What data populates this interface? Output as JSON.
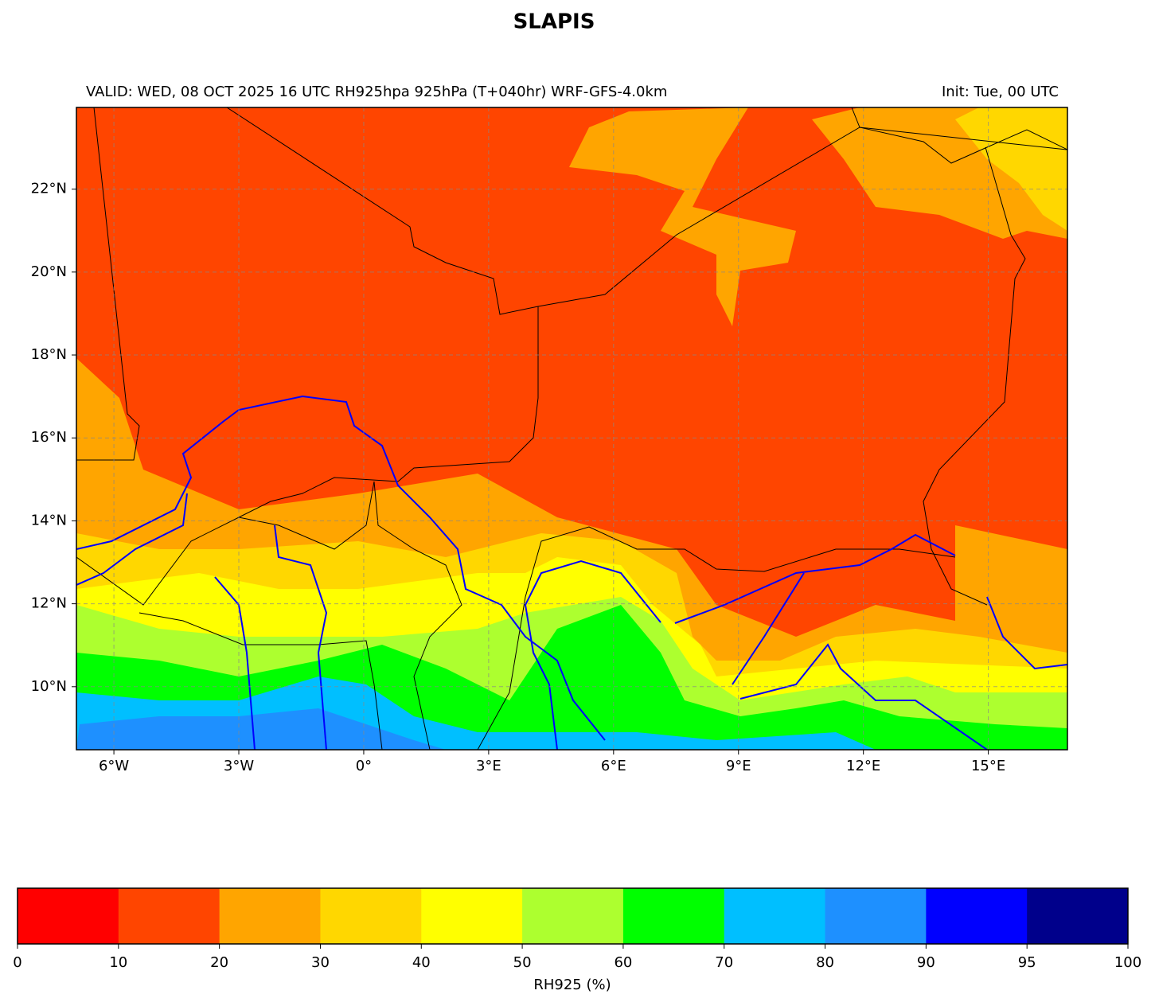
{
  "map": {
    "title": "SLAPIS",
    "subtitle_left": "VALID: WED, 08 OCT 2025 16 UTC  RH925hpa 925hPa (T+040hr) WRF-GFS-4.0km",
    "subtitle_right": "Init: Tue, 00 UTC",
    "lonlim": [
      -6.9,
      16.9
    ],
    "latlim": [
      8.48,
      23.97
    ],
    "lonticks": [
      {
        "value": -6,
        "label": "6°W"
      },
      {
        "value": -3,
        "label": "3°W"
      },
      {
        "value": 0,
        "label": "0°"
      },
      {
        "value": 3,
        "label": "3°E"
      },
      {
        "value": 6,
        "label": "6°E"
      },
      {
        "value": 9,
        "label": "9°E"
      },
      {
        "value": 12,
        "label": "12°E"
      },
      {
        "value": 15,
        "label": "15°E"
      }
    ],
    "latticks": [
      {
        "value": 10,
        "label": "10°N"
      },
      {
        "value": 12,
        "label": "12°N"
      },
      {
        "value": 14,
        "label": "14°N"
      },
      {
        "value": 16,
        "label": "16°N"
      },
      {
        "value": 18,
        "label": "18°N"
      },
      {
        "value": 20,
        "label": "20°N"
      },
      {
        "value": 22,
        "label": "22°N"
      }
    ],
    "grid": true
  },
  "colorbar": {
    "label": "RH925 (%)",
    "boundaries": [
      0,
      10,
      20,
      30,
      40,
      50,
      60,
      70,
      80,
      90,
      95,
      100
    ],
    "colors": [
      "#ff0000",
      "#ff4500",
      "#ffa500",
      "#ffd700",
      "#ffff00",
      "#adff2f",
      "#00ff00",
      "#00bfff",
      "#1e90ff",
      "#0000ff",
      "#00008b"
    ]
  }
}
